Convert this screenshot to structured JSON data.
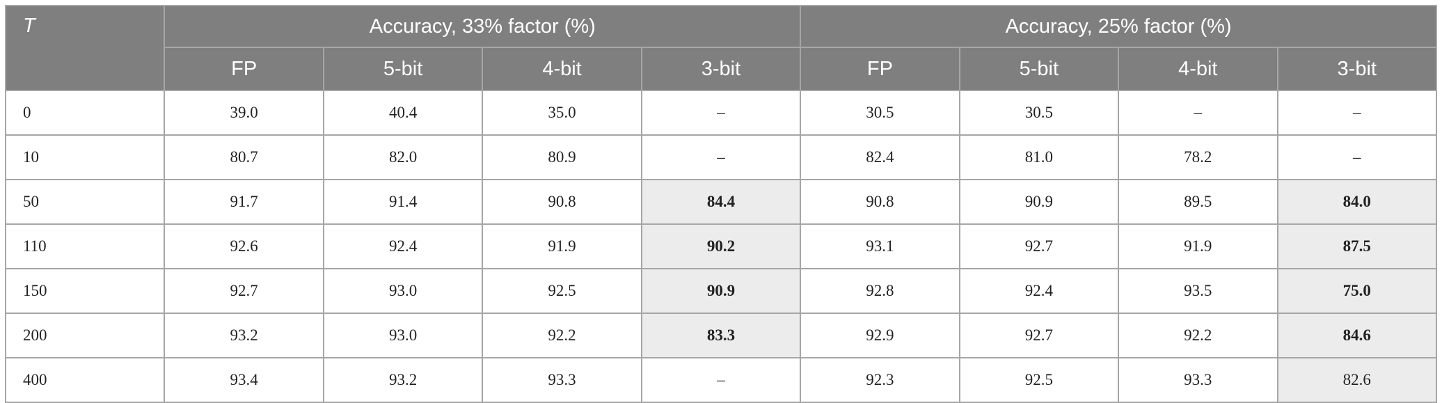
{
  "table": {
    "corner": "T",
    "groups": [
      "Accuracy, 33% factor (%)",
      "Accuracy, 25% factor (%)"
    ],
    "columns": [
      "FP",
      "5-bit",
      "4-bit",
      "3-bit",
      "FP",
      "5-bit",
      "4-bit",
      "3-bit"
    ],
    "rows": [
      [
        "0",
        "39.0",
        "40.4",
        "35.0",
        "–",
        "30.5",
        "30.5",
        "–",
        "–"
      ],
      [
        "10",
        "80.7",
        "82.0",
        "80.9",
        "–",
        "82.4",
        "81.0",
        "78.2",
        "–"
      ],
      [
        "50",
        "91.7",
        "91.4",
        "90.8",
        "84.4",
        "90.8",
        "90.9",
        "89.5",
        "84.0"
      ],
      [
        "110",
        "92.6",
        "92.4",
        "91.9",
        "90.2",
        "93.1",
        "92.7",
        "91.9",
        "87.5"
      ],
      [
        "150",
        "92.7",
        "93.0",
        "92.5",
        "90.9",
        "92.8",
        "92.4",
        "93.5",
        "75.0"
      ],
      [
        "200",
        "93.2",
        "93.0",
        "92.2",
        "83.3",
        "92.9",
        "92.7",
        "92.2",
        "84.6"
      ],
      [
        "400",
        "93.4",
        "93.2",
        "93.3",
        "–",
        "92.3",
        "92.5",
        "93.3",
        "82.6"
      ]
    ]
  }
}
